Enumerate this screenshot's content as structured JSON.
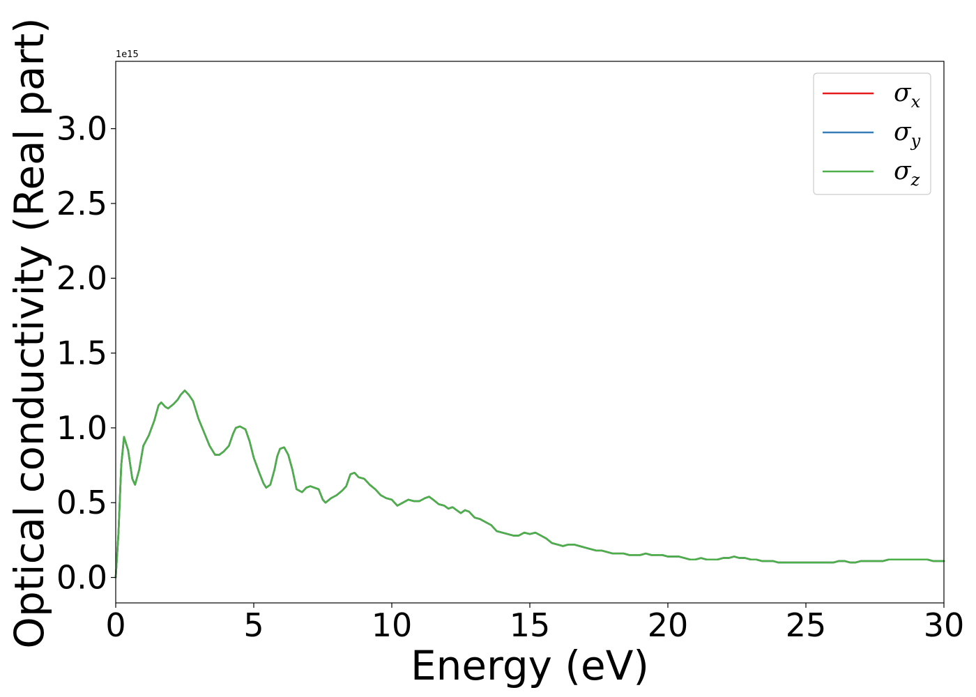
{
  "chart_data": {
    "type": "line",
    "xlabel": "Energy (eV)",
    "ylabel": "Optical conductivity (Real part)",
    "offset_text": "1e15",
    "xlim": [
      0,
      30
    ],
    "ylim": [
      -0.17,
      3.45
    ],
    "y_scale_factor": 1000000000000000.0,
    "x_ticks": [
      0,
      5,
      10,
      15,
      20,
      25,
      30
    ],
    "x_tick_labels": [
      "0",
      "5",
      "10",
      "15",
      "20",
      "25",
      "30"
    ],
    "y_ticks": [
      0.0,
      0.5,
      1.0,
      1.5,
      2.0,
      2.5,
      3.0
    ],
    "y_tick_labels": [
      "0.0",
      "0.5",
      "1.0",
      "1.5",
      "2.0",
      "2.5",
      "3.0"
    ],
    "grid": false,
    "legend_position": "top-right",
    "x": [
      0,
      0.1,
      0.2,
      0.3,
      0.45,
      0.6,
      0.7,
      0.85,
      1.0,
      1.2,
      1.4,
      1.55,
      1.65,
      1.8,
      1.9,
      2.1,
      2.25,
      2.35,
      2.5,
      2.65,
      2.8,
      3.0,
      3.2,
      3.4,
      3.6,
      3.75,
      3.9,
      4.1,
      4.25,
      4.35,
      4.5,
      4.7,
      4.85,
      5.0,
      5.2,
      5.35,
      5.45,
      5.6,
      5.75,
      5.85,
      5.95,
      6.1,
      6.25,
      6.4,
      6.55,
      6.75,
      6.9,
      7.05,
      7.2,
      7.35,
      7.5,
      7.6,
      7.8,
      8.0,
      8.2,
      8.35,
      8.5,
      8.65,
      8.8,
      9.0,
      9.2,
      9.4,
      9.6,
      9.8,
      10.0,
      10.2,
      10.4,
      10.6,
      10.8,
      11.0,
      11.2,
      11.35,
      11.5,
      11.7,
      11.9,
      12.05,
      12.2,
      12.35,
      12.5,
      12.65,
      12.8,
      13.0,
      13.2,
      13.4,
      13.6,
      13.8,
      14.0,
      14.2,
      14.4,
      14.6,
      14.8,
      15.0,
      15.2,
      15.4,
      15.6,
      15.8,
      16.0,
      16.2,
      16.4,
      16.6,
      16.8,
      17.0,
      17.2,
      17.4,
      17.6,
      17.8,
      18.0,
      18.2,
      18.4,
      18.6,
      18.8,
      19.0,
      19.2,
      19.4,
      19.6,
      19.8,
      20.0,
      20.2,
      20.4,
      20.6,
      20.8,
      21.0,
      21.2,
      21.4,
      21.6,
      21.8,
      22.0,
      22.2,
      22.4,
      22.6,
      22.8,
      23.0,
      23.2,
      23.4,
      23.6,
      23.8,
      24.0,
      24.2,
      24.4,
      24.6,
      24.8,
      25.0,
      25.2,
      25.4,
      25.6,
      25.8,
      26.0,
      26.2,
      26.4,
      26.6,
      26.8,
      27.0,
      27.2,
      27.4,
      27.6,
      27.8,
      28.0,
      28.2,
      28.4,
      28.6,
      28.8,
      29.0,
      29.2,
      29.4,
      29.6,
      29.8,
      30.0
    ],
    "series": [
      {
        "name": "σx",
        "sub": "x",
        "color": "#e41a1c",
        "values": [
          0.0,
          0.3,
          0.75,
          0.94,
          0.85,
          0.66,
          0.62,
          0.72,
          0.88,
          0.95,
          1.05,
          1.15,
          1.17,
          1.14,
          1.13,
          1.16,
          1.19,
          1.22,
          1.25,
          1.22,
          1.18,
          1.06,
          0.97,
          0.88,
          0.82,
          0.82,
          0.84,
          0.88,
          0.96,
          1.0,
          1.01,
          0.99,
          0.91,
          0.8,
          0.7,
          0.63,
          0.6,
          0.62,
          0.72,
          0.81,
          0.86,
          0.87,
          0.82,
          0.72,
          0.59,
          0.57,
          0.6,
          0.61,
          0.6,
          0.59,
          0.52,
          0.5,
          0.53,
          0.55,
          0.58,
          0.61,
          0.69,
          0.7,
          0.67,
          0.66,
          0.62,
          0.59,
          0.55,
          0.53,
          0.52,
          0.48,
          0.5,
          0.52,
          0.51,
          0.51,
          0.53,
          0.54,
          0.52,
          0.49,
          0.48,
          0.46,
          0.47,
          0.45,
          0.43,
          0.45,
          0.44,
          0.4,
          0.39,
          0.37,
          0.35,
          0.31,
          0.3,
          0.29,
          0.28,
          0.28,
          0.3,
          0.29,
          0.3,
          0.28,
          0.26,
          0.23,
          0.22,
          0.21,
          0.22,
          0.22,
          0.21,
          0.2,
          0.19,
          0.18,
          0.18,
          0.17,
          0.16,
          0.16,
          0.16,
          0.15,
          0.15,
          0.15,
          0.16,
          0.15,
          0.15,
          0.15,
          0.14,
          0.14,
          0.14,
          0.13,
          0.12,
          0.12,
          0.13,
          0.12,
          0.12,
          0.12,
          0.13,
          0.13,
          0.14,
          0.13,
          0.13,
          0.12,
          0.12,
          0.11,
          0.11,
          0.11,
          0.1,
          0.1,
          0.1,
          0.1,
          0.1,
          0.1,
          0.1,
          0.1,
          0.1,
          0.1,
          0.1,
          0.11,
          0.11,
          0.1,
          0.1,
          0.11,
          0.11,
          0.11,
          0.11,
          0.11,
          0.12,
          0.12,
          0.12,
          0.12,
          0.12,
          0.12,
          0.12,
          0.12,
          0.11,
          0.11,
          0.11
        ]
      },
      {
        "name": "σy",
        "sub": "y",
        "color": "#377eb8",
        "values": [
          0.0,
          0.3,
          0.75,
          0.94,
          0.85,
          0.66,
          0.62,
          0.72,
          0.88,
          0.95,
          1.05,
          1.15,
          1.17,
          1.14,
          1.13,
          1.16,
          1.19,
          1.22,
          1.25,
          1.22,
          1.18,
          1.06,
          0.97,
          0.88,
          0.82,
          0.82,
          0.84,
          0.88,
          0.96,
          1.0,
          1.01,
          0.99,
          0.91,
          0.8,
          0.7,
          0.63,
          0.6,
          0.62,
          0.72,
          0.81,
          0.86,
          0.87,
          0.82,
          0.72,
          0.59,
          0.57,
          0.6,
          0.61,
          0.6,
          0.59,
          0.52,
          0.5,
          0.53,
          0.55,
          0.58,
          0.61,
          0.69,
          0.7,
          0.67,
          0.66,
          0.62,
          0.59,
          0.55,
          0.53,
          0.52,
          0.48,
          0.5,
          0.52,
          0.51,
          0.51,
          0.53,
          0.54,
          0.52,
          0.49,
          0.48,
          0.46,
          0.47,
          0.45,
          0.43,
          0.45,
          0.44,
          0.4,
          0.39,
          0.37,
          0.35,
          0.31,
          0.3,
          0.29,
          0.28,
          0.28,
          0.3,
          0.29,
          0.3,
          0.28,
          0.26,
          0.23,
          0.22,
          0.21,
          0.22,
          0.22,
          0.21,
          0.2,
          0.19,
          0.18,
          0.18,
          0.17,
          0.16,
          0.16,
          0.16,
          0.15,
          0.15,
          0.15,
          0.16,
          0.15,
          0.15,
          0.15,
          0.14,
          0.14,
          0.14,
          0.13,
          0.12,
          0.12,
          0.13,
          0.12,
          0.12,
          0.12,
          0.13,
          0.13,
          0.14,
          0.13,
          0.13,
          0.12,
          0.12,
          0.11,
          0.11,
          0.11,
          0.1,
          0.1,
          0.1,
          0.1,
          0.1,
          0.1,
          0.1,
          0.1,
          0.1,
          0.1,
          0.1,
          0.11,
          0.11,
          0.1,
          0.1,
          0.11,
          0.11,
          0.11,
          0.11,
          0.11,
          0.12,
          0.12,
          0.12,
          0.12,
          0.12,
          0.12,
          0.12,
          0.12,
          0.11,
          0.11,
          0.11
        ]
      },
      {
        "name": "σz",
        "sub": "z",
        "color": "#4daf4a",
        "values": [
          0.0,
          0.3,
          0.75,
          0.94,
          0.85,
          0.66,
          0.62,
          0.72,
          0.88,
          0.95,
          1.05,
          1.15,
          1.17,
          1.14,
          1.13,
          1.16,
          1.19,
          1.22,
          1.25,
          1.22,
          1.18,
          1.06,
          0.97,
          0.88,
          0.82,
          0.82,
          0.84,
          0.88,
          0.96,
          1.0,
          1.01,
          0.99,
          0.91,
          0.8,
          0.7,
          0.63,
          0.6,
          0.62,
          0.72,
          0.81,
          0.86,
          0.87,
          0.82,
          0.72,
          0.59,
          0.57,
          0.6,
          0.61,
          0.6,
          0.59,
          0.52,
          0.5,
          0.53,
          0.55,
          0.58,
          0.61,
          0.69,
          0.7,
          0.67,
          0.66,
          0.62,
          0.59,
          0.55,
          0.53,
          0.52,
          0.48,
          0.5,
          0.52,
          0.51,
          0.51,
          0.53,
          0.54,
          0.52,
          0.49,
          0.48,
          0.46,
          0.47,
          0.45,
          0.43,
          0.45,
          0.44,
          0.4,
          0.39,
          0.37,
          0.35,
          0.31,
          0.3,
          0.29,
          0.28,
          0.28,
          0.3,
          0.29,
          0.3,
          0.28,
          0.26,
          0.23,
          0.22,
          0.21,
          0.22,
          0.22,
          0.21,
          0.2,
          0.19,
          0.18,
          0.18,
          0.17,
          0.16,
          0.16,
          0.16,
          0.15,
          0.15,
          0.15,
          0.16,
          0.15,
          0.15,
          0.15,
          0.14,
          0.14,
          0.14,
          0.13,
          0.12,
          0.12,
          0.13,
          0.12,
          0.12,
          0.12,
          0.13,
          0.13,
          0.14,
          0.13,
          0.13,
          0.12,
          0.12,
          0.11,
          0.11,
          0.11,
          0.1,
          0.1,
          0.1,
          0.1,
          0.1,
          0.1,
          0.1,
          0.1,
          0.1,
          0.1,
          0.1,
          0.11,
          0.11,
          0.1,
          0.1,
          0.11,
          0.11,
          0.11,
          0.11,
          0.11,
          0.12,
          0.12,
          0.12,
          0.12,
          0.12,
          0.12,
          0.12,
          0.12,
          0.11,
          0.11,
          0.11
        ]
      }
    ]
  }
}
